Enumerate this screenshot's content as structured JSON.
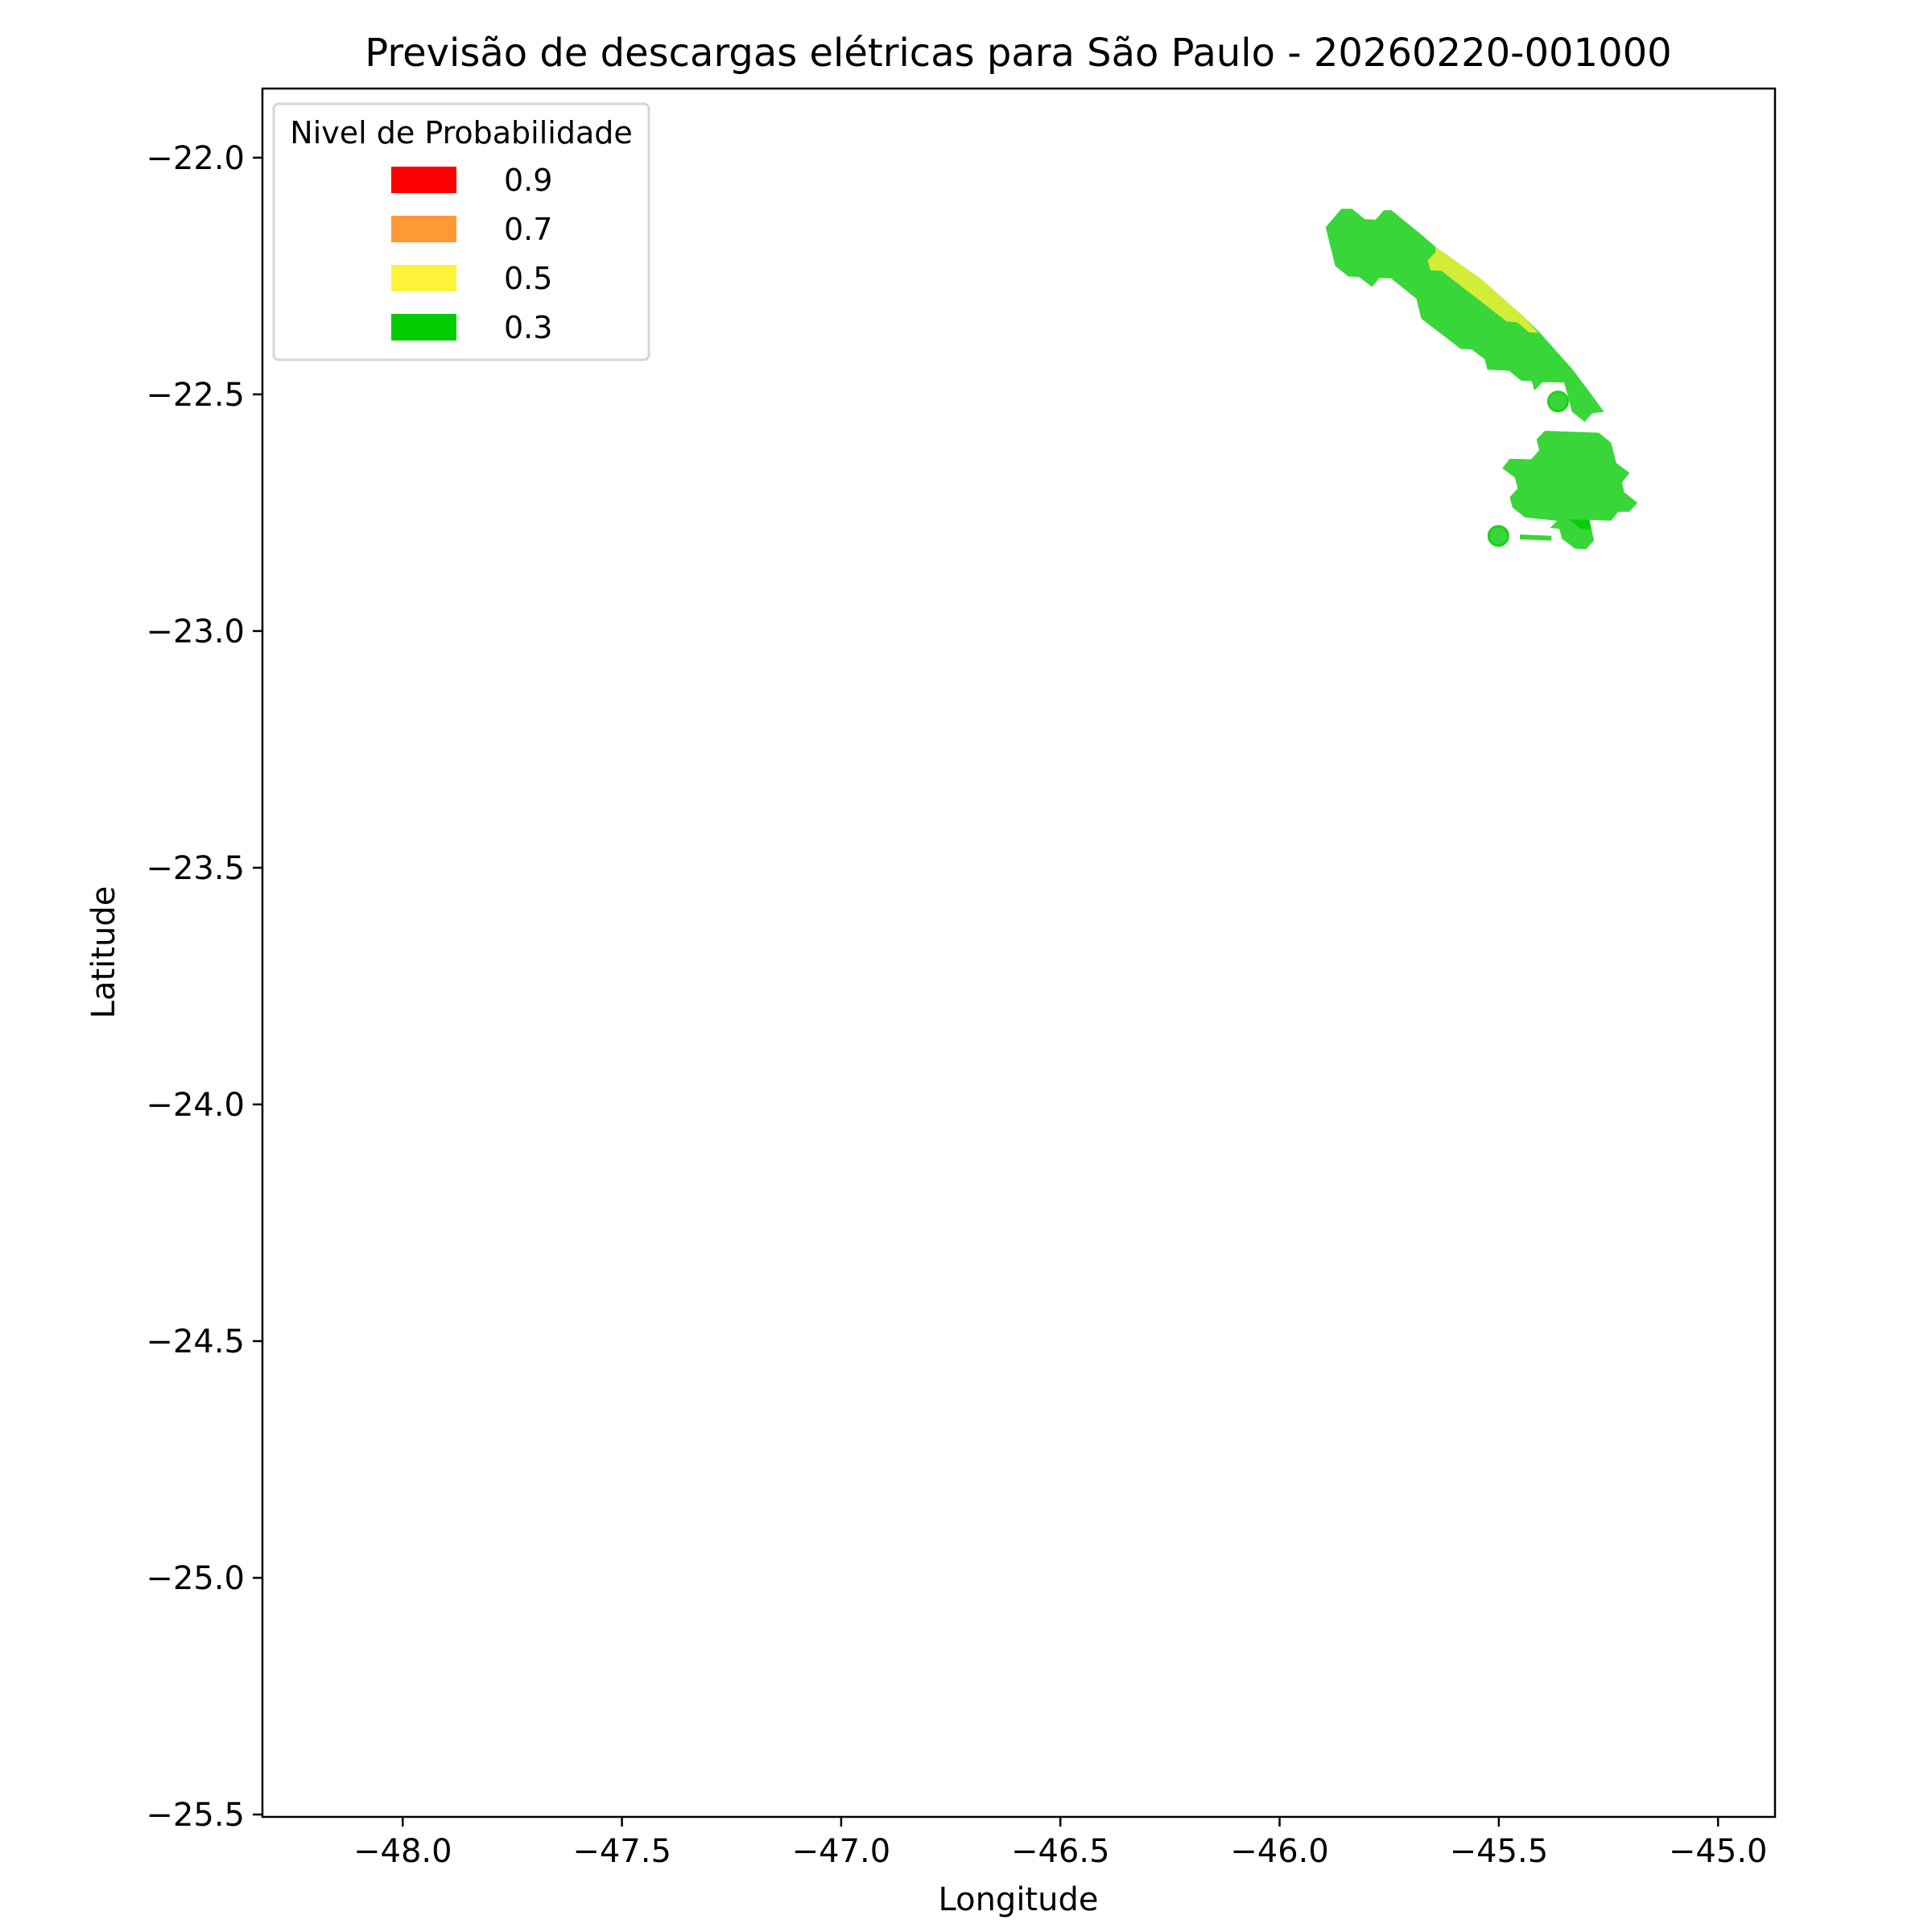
{
  "chart_data": {
    "type": "contour-map",
    "title": "Previsão de descargas elétricas para São Paulo - 20260220-001000",
    "xlabel": "Longitude",
    "ylabel": "Latitude",
    "xlim": [
      -48.32,
      -44.87
    ],
    "ylim": [
      -25.505,
      -21.854
    ],
    "xticks": [
      -48.0,
      -47.5,
      -47.0,
      -46.5,
      -46.0,
      -45.5,
      -45.0
    ],
    "xtick_labels": [
      "−48.0",
      "−47.5",
      "−47.0",
      "−46.5",
      "−46.0",
      "−45.5",
      "−45.0"
    ],
    "yticks": [
      -22.0,
      -22.5,
      -23.0,
      -23.5,
      -24.0,
      -24.5,
      -25.0,
      -25.5
    ],
    "ytick_labels": [
      "−22.0",
      "−22.5",
      "−23.0",
      "−23.5",
      "−24.0",
      "−24.5",
      "−25.0",
      "−25.5"
    ],
    "grid": false,
    "legend": {
      "title": "Nivel de Probabilidade",
      "placement": "top-left",
      "entries": [
        {
          "label": "0.9",
          "color": "#ff0000"
        },
        {
          "label": "0.7",
          "color": "#ff9933"
        },
        {
          "label": "0.5",
          "color": "#fff23a"
        },
        {
          "label": "0.3",
          "color": "#00cc00"
        }
      ]
    },
    "regions": [
      {
        "level": "0.3",
        "color": "#38d638",
        "points": [
          [
            -45.895,
            -22.147
          ],
          [
            -45.859,
            -22.108
          ],
          [
            -45.835,
            -22.108
          ],
          [
            -45.806,
            -22.13
          ],
          [
            -45.781,
            -22.131
          ],
          [
            -45.762,
            -22.111
          ],
          [
            -45.745,
            -22.111
          ],
          [
            -45.676,
            -22.163
          ],
          [
            -45.645,
            -22.188
          ],
          [
            -45.541,
            -22.256
          ],
          [
            -45.443,
            -22.336
          ],
          [
            -45.406,
            -22.37
          ],
          [
            -45.333,
            -22.446
          ],
          [
            -45.293,
            -22.495
          ],
          [
            -45.26,
            -22.537
          ],
          [
            -45.287,
            -22.54
          ],
          [
            -45.304,
            -22.558
          ],
          [
            -45.333,
            -22.537
          ],
          [
            -45.351,
            -22.475
          ],
          [
            -45.4,
            -22.474
          ],
          [
            -45.419,
            -22.492
          ],
          [
            -45.425,
            -22.472
          ],
          [
            -45.449,
            -22.471
          ],
          [
            -45.477,
            -22.45
          ],
          [
            -45.526,
            -22.448
          ],
          [
            -45.532,
            -22.426
          ],
          [
            -45.562,
            -22.405
          ],
          [
            -45.587,
            -22.404
          ],
          [
            -45.677,
            -22.34
          ],
          [
            -45.688,
            -22.298
          ],
          [
            -45.746,
            -22.255
          ],
          [
            -45.772,
            -22.254
          ],
          [
            -45.789,
            -22.273
          ],
          [
            -45.819,
            -22.252
          ],
          [
            -45.843,
            -22.251
          ],
          [
            -45.873,
            -22.229
          ]
        ]
      },
      {
        "level": "0.5",
        "color": "#d2ec38",
        "points": [
          [
            -45.645,
            -22.188
          ],
          [
            -45.541,
            -22.256
          ],
          [
            -45.443,
            -22.336
          ],
          [
            -45.41,
            -22.37
          ],
          [
            -45.431,
            -22.369
          ],
          [
            -45.458,
            -22.348
          ],
          [
            -45.482,
            -22.346
          ],
          [
            -45.631,
            -22.239
          ],
          [
            -45.656,
            -22.238
          ],
          [
            -45.662,
            -22.217
          ],
          [
            -45.644,
            -22.199
          ]
        ]
      },
      {
        "level": "0.3",
        "color": "#38d638",
        "points": [
          [
            -45.395,
            -22.577
          ],
          [
            -45.272,
            -22.581
          ],
          [
            -45.244,
            -22.602
          ],
          [
            -45.232,
            -22.645
          ],
          [
            -45.202,
            -22.666
          ],
          [
            -45.219,
            -22.686
          ],
          [
            -45.214,
            -22.707
          ],
          [
            -45.184,
            -22.729
          ],
          [
            -45.202,
            -22.748
          ],
          [
            -45.228,
            -22.748
          ],
          [
            -45.244,
            -22.767
          ],
          [
            -45.293,
            -22.765
          ],
          [
            -45.283,
            -22.809
          ],
          [
            -45.301,
            -22.827
          ],
          [
            -45.326,
            -22.826
          ],
          [
            -45.356,
            -22.805
          ],
          [
            -45.362,
            -22.784
          ],
          [
            -45.383,
            -22.782
          ],
          [
            -45.367,
            -22.767
          ],
          [
            -45.44,
            -22.76
          ],
          [
            -45.469,
            -22.739
          ],
          [
            -45.475,
            -22.717
          ],
          [
            -45.457,
            -22.699
          ],
          [
            -45.463,
            -22.676
          ],
          [
            -45.492,
            -22.656
          ],
          [
            -45.475,
            -22.636
          ],
          [
            -45.426,
            -22.637
          ],
          [
            -45.408,
            -22.618
          ],
          [
            -45.414,
            -22.595
          ]
        ]
      },
      {
        "level": "0.3",
        "color": "#0acc0a",
        "points": [
          [
            -45.341,
            -22.764
          ],
          [
            -45.293,
            -22.765
          ],
          [
            -45.29,
            -22.785
          ],
          [
            -45.312,
            -22.785
          ]
        ]
      }
    ],
    "points": [
      {
        "level": "0.3",
        "lon": -45.365,
        "lat": -22.515,
        "color": "#38d638"
      },
      {
        "level": "0.3",
        "lon": -45.501,
        "lat": -22.799,
        "color": "#38d638"
      }
    ],
    "segments": [
      {
        "level": "0.3",
        "from": [
          -45.452,
          -22.801
        ],
        "to": [
          -45.38,
          -22.804
        ],
        "color": "#38d638"
      }
    ]
  }
}
